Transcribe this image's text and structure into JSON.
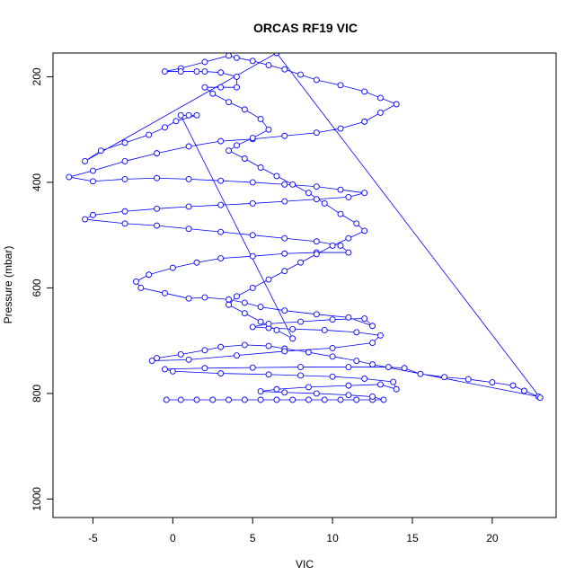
{
  "chart_data": {
    "type": "line",
    "title": "ORCAS RF19 VIC",
    "xlabel": "VIC",
    "ylabel": "Pressure (mbar)",
    "xlim": [
      -7.5,
      24.0
    ],
    "ylim": [
      1035,
      155
    ],
    "y_reversed": true,
    "grid": false,
    "marker": "open-circle",
    "color": "#0000ff",
    "xticks": [
      -5,
      0,
      5,
      10,
      15,
      20
    ],
    "yticks": [
      200,
      400,
      600,
      800,
      1000
    ],
    "x_tick_labels": [
      "-5",
      "0",
      "5",
      "10",
      "15",
      "20"
    ],
    "y_tick_labels": [
      "200",
      "400",
      "600",
      "800",
      "1000"
    ],
    "series": [
      {
        "points": [
          [
            -0.4,
            812
          ],
          [
            0.5,
            812
          ],
          [
            1.5,
            812
          ],
          [
            2.5,
            812
          ],
          [
            3.5,
            812
          ],
          [
            4.5,
            812
          ],
          [
            5.5,
            812
          ],
          [
            6.5,
            812
          ],
          [
            7.5,
            812
          ],
          [
            8.5,
            812
          ],
          [
            9.5,
            812
          ],
          [
            10.5,
            812
          ],
          [
            11.5,
            812
          ],
          [
            12.5,
            812
          ],
          [
            13.2,
            812
          ],
          [
            12.5,
            806
          ],
          [
            11.0,
            803
          ],
          [
            9.0,
            800
          ],
          [
            7.0,
            798
          ],
          [
            5.5,
            796
          ],
          [
            6.5,
            792
          ],
          [
            8.5,
            788
          ],
          [
            11.0,
            785
          ],
          [
            13.0,
            783
          ],
          [
            14.0,
            792
          ],
          [
            13.8,
            778
          ],
          [
            12.0,
            772
          ],
          [
            10.0,
            768
          ],
          [
            8.0,
            766
          ],
          [
            6.0,
            764
          ],
          [
            3.0,
            762
          ],
          [
            0.0,
            758
          ],
          [
            -0.5,
            754
          ],
          [
            2.0,
            752
          ],
          [
            5.0,
            751
          ],
          [
            8.0,
            750
          ],
          [
            11.0,
            750
          ],
          [
            13.5,
            750
          ],
          [
            14.5,
            752
          ],
          [
            15.5,
            763
          ],
          [
            17.0,
            769
          ],
          [
            18.5,
            773
          ],
          [
            20.0,
            779
          ],
          [
            21.3,
            785
          ],
          [
            22.0,
            795
          ],
          [
            22.9,
            806
          ],
          [
            12.5,
            745
          ],
          [
            11.5,
            738
          ],
          [
            10.0,
            730
          ],
          [
            8.5,
            722
          ],
          [
            7.0,
            715
          ],
          [
            6.0,
            710
          ],
          [
            4.5,
            708
          ],
          [
            3.0,
            712
          ],
          [
            2.0,
            718
          ],
          [
            0.5,
            726
          ],
          [
            -1.0,
            733
          ],
          [
            -1.3,
            738
          ],
          [
            1.0,
            736
          ],
          [
            4.0,
            728
          ],
          [
            7.0,
            720
          ],
          [
            10.0,
            714
          ],
          [
            12.5,
            704
          ],
          [
            13.0,
            690
          ],
          [
            11.5,
            684
          ],
          [
            9.5,
            680
          ],
          [
            7.5,
            678
          ],
          [
            6.0,
            676
          ],
          [
            5.0,
            674
          ],
          [
            6.0,
            668
          ],
          [
            8.0,
            664
          ],
          [
            10.0,
            660
          ],
          [
            12.0,
            658
          ],
          [
            12.5,
            672
          ],
          [
            11.0,
            656
          ],
          [
            9.0,
            650
          ],
          [
            7.0,
            643
          ],
          [
            5.5,
            636
          ],
          [
            4.5,
            628
          ],
          [
            3.5,
            622
          ],
          [
            2.0,
            618
          ],
          [
            1.0,
            620
          ],
          [
            -0.5,
            610
          ],
          [
            -2.0,
            600
          ],
          [
            -2.3,
            588
          ],
          [
            -1.5,
            575
          ],
          [
            0.0,
            562
          ],
          [
            1.5,
            552
          ],
          [
            3.0,
            544
          ],
          [
            5.0,
            540
          ],
          [
            7.0,
            535
          ],
          [
            9.0,
            533
          ],
          [
            11.0,
            533
          ],
          [
            10.5,
            520
          ],
          [
            9.0,
            512
          ],
          [
            7.0,
            506
          ],
          [
            5.0,
            500
          ],
          [
            3.0,
            494
          ],
          [
            1.0,
            488
          ],
          [
            -1.0,
            482
          ],
          [
            -3.0,
            478
          ],
          [
            -5.5,
            470
          ],
          [
            -5.0,
            462
          ],
          [
            -3.0,
            455
          ],
          [
            -1.0,
            450
          ],
          [
            1.0,
            446
          ],
          [
            3.0,
            443
          ],
          [
            5.0,
            440
          ],
          [
            7.0,
            436
          ],
          [
            9.0,
            432
          ],
          [
            11.0,
            428
          ],
          [
            12.0,
            420
          ],
          [
            10.5,
            414
          ],
          [
            9.0,
            408
          ],
          [
            7.0,
            404
          ],
          [
            5.0,
            400
          ],
          [
            3.0,
            397
          ],
          [
            1.0,
            394
          ],
          [
            -1.0,
            392
          ],
          [
            -3.0,
            394
          ],
          [
            -5.0,
            398
          ],
          [
            -6.5,
            390
          ],
          [
            -5.0,
            378
          ],
          [
            -3.0,
            360
          ],
          [
            -1.0,
            345
          ],
          [
            1.0,
            332
          ],
          [
            3.0,
            322
          ],
          [
            5.0,
            318
          ],
          [
            7.0,
            312
          ],
          [
            9.0,
            306
          ],
          [
            10.5,
            298
          ],
          [
            12.0,
            285
          ],
          [
            13.0,
            268
          ],
          [
            14.0,
            252
          ],
          [
            13.0,
            240
          ],
          [
            12.0,
            228
          ],
          [
            10.5,
            216
          ],
          [
            9.0,
            206
          ],
          [
            8.0,
            196
          ],
          [
            7.0,
            186
          ],
          [
            6.0,
            178
          ],
          [
            5.0,
            170
          ],
          [
            4.0,
            164
          ],
          [
            3.5,
            160
          ],
          [
            2.0,
            172
          ],
          [
            0.5,
            184
          ],
          [
            -0.5,
            190
          ],
          [
            0.5,
            190
          ],
          [
            1.5,
            190
          ],
          [
            2.0,
            190
          ],
          [
            3.0,
            192
          ],
          [
            4.0,
            200
          ],
          [
            4.0,
            220
          ],
          [
            3.0,
            220
          ],
          [
            2.0,
            220
          ],
          [
            2.5,
            232
          ],
          [
            3.5,
            248
          ],
          [
            4.5,
            262
          ],
          [
            5.5,
            280
          ],
          [
            6.0,
            300
          ],
          [
            5.0,
            316
          ],
          [
            4.0,
            330
          ],
          [
            3.5,
            340
          ],
          [
            4.5,
            355
          ],
          [
            5.5,
            372
          ],
          [
            6.5,
            388
          ],
          [
            7.5,
            404
          ],
          [
            8.5,
            420
          ],
          [
            9.5,
            440
          ],
          [
            10.5,
            460
          ],
          [
            11.5,
            478
          ],
          [
            12.0,
            492
          ],
          [
            11.0,
            506
          ],
          [
            10.0,
            520
          ],
          [
            9.0,
            536
          ],
          [
            8.0,
            552
          ],
          [
            7.0,
            568
          ],
          [
            6.0,
            584
          ],
          [
            5.0,
            600
          ],
          [
            4.0,
            616
          ],
          [
            3.5,
            632
          ],
          [
            4.5,
            648
          ],
          [
            5.5,
            664
          ],
          [
            6.5,
            680
          ],
          [
            7.5,
            696
          ],
          [
            0.5,
            273
          ],
          [
            1.0,
            273
          ],
          [
            1.5,
            273
          ],
          [
            0.2,
            284
          ],
          [
            -0.5,
            296
          ],
          [
            -1.5,
            310
          ],
          [
            -3.0,
            325
          ],
          [
            -4.5,
            340
          ],
          [
            -5.5,
            360
          ],
          [
            6.5,
            155
          ],
          [
            23.0,
            808
          ]
        ]
      }
    ]
  }
}
